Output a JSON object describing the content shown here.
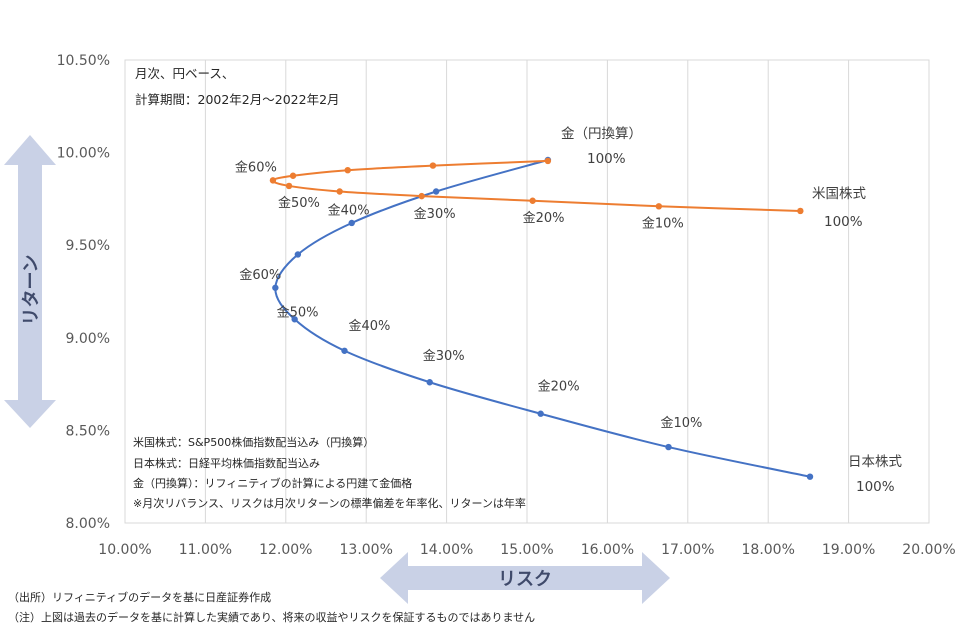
{
  "chart_data": {
    "type": "scatter",
    "x_axis": {
      "min": 10,
      "max": 20,
      "step": 1,
      "tick_labels": [
        "10.00%",
        "11.00%",
        "12.00%",
        "13.00%",
        "14.00%",
        "15.00%",
        "16.00%",
        "17.00%",
        "18.00%",
        "19.00%",
        "20.00%"
      ]
    },
    "y_axis": {
      "min": 8.0,
      "max": 10.5,
      "step": 0.5,
      "tick_labels": [
        "8.00%",
        "8.50%",
        "9.00%",
        "9.50%",
        "10.00%",
        "10.50%"
      ]
    },
    "xlabel": "リスク",
    "ylabel": "リターン",
    "grid": "vertical",
    "series": [
      {
        "color": "#4472c4",
        "points": [
          {
            "x": 18.52,
            "y": 8.25,
            "label": ""
          },
          {
            "x": 16.76,
            "y": 8.41,
            "label": "金10%"
          },
          {
            "x": 15.17,
            "y": 8.59,
            "label": "金20%"
          },
          {
            "x": 13.79,
            "y": 8.76,
            "label": "金30%"
          },
          {
            "x": 12.73,
            "y": 8.93,
            "label": "金40%"
          },
          {
            "x": 12.11,
            "y": 9.1,
            "label": "金50%"
          },
          {
            "x": 11.87,
            "y": 9.27,
            "label": "金60%"
          },
          {
            "x": 12.15,
            "y": 9.45,
            "label": ""
          },
          {
            "x": 12.82,
            "y": 9.62,
            "label": ""
          },
          {
            "x": 13.87,
            "y": 9.79,
            "label": ""
          },
          {
            "x": 15.26,
            "y": 9.96,
            "label": ""
          }
        ]
      },
      {
        "color": "#ed7d31",
        "points": [
          {
            "x": 18.4,
            "y": 9.685,
            "label": ""
          },
          {
            "x": 16.64,
            "y": 9.71,
            "label": "金10%"
          },
          {
            "x": 15.07,
            "y": 9.74,
            "label": "金20%"
          },
          {
            "x": 13.69,
            "y": 9.765,
            "label": "金30%"
          },
          {
            "x": 12.67,
            "y": 9.79,
            "label": "金40%"
          },
          {
            "x": 12.04,
            "y": 9.82,
            "label": "金50%"
          },
          {
            "x": 11.84,
            "y": 9.85,
            "label": "金60%"
          },
          {
            "x": 12.09,
            "y": 9.875,
            "label": ""
          },
          {
            "x": 12.77,
            "y": 9.905,
            "label": ""
          },
          {
            "x": 13.83,
            "y": 9.93,
            "label": ""
          },
          {
            "x": 15.26,
            "y": 9.955,
            "label": ""
          }
        ]
      }
    ],
    "end_labels": [
      {
        "name": "金（円換算）",
        "value": "100%"
      },
      {
        "name": "米国株式",
        "value": "100%"
      },
      {
        "name": "日本株式",
        "value": "100%"
      }
    ],
    "annotation_top": [
      "月次、円ベース、",
      "計算期間：2002年2月～2022年2月"
    ],
    "annotation_box": [
      "米国株式：S&P500株価指数配当込み（円換算）",
      "日本株式：日経平均株価指数配当込み",
      "金（円換算）：リフィニティブの計算による円建て金価格",
      "※月次リバランス、リスクは月次リターンの標準偏差を年率化、リターンは年率"
    ],
    "footnotes": [
      "（出所）リフィニティブのデータを基に日産証券作成",
      "（注）上図は過去のデータを基に計算した実績であり、将来の収益やリスクを保証するものではありません"
    ]
  }
}
